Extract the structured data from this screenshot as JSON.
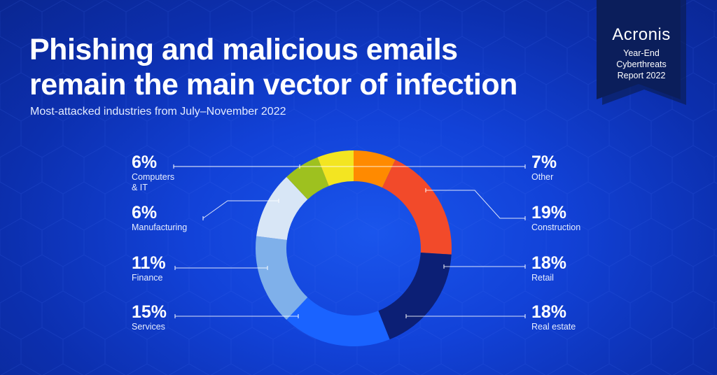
{
  "title_line1": "Phishing and malicious emails",
  "title_line2": "remain the main vector of infection",
  "subtitle": "Most-attacked industries from July–November 2022",
  "badge": {
    "brand": "Acronis",
    "line1": "Year-End",
    "line2": "Cyberthreats",
    "line3": "Report 2022"
  },
  "colors": {
    "background": "#1242d8",
    "badge": "#0b1e5b"
  },
  "chart_data": {
    "type": "pie",
    "subtype": "donut",
    "slices": [
      {
        "label": "Other",
        "value": 7,
        "color": "#ff8a00",
        "pct_text": "7%"
      },
      {
        "label": "Construction",
        "value": 19,
        "color": "#f24a2a",
        "pct_text": "19%"
      },
      {
        "label": "Retail",
        "value": 18,
        "color": "#0c1f75",
        "pct_text": "18%"
      },
      {
        "label": "Real estate",
        "value": 18,
        "color": "#1a63ff",
        "pct_text": "18%"
      },
      {
        "label": "Services",
        "value": 15,
        "color": "#7fb0ea",
        "pct_text": "15%"
      },
      {
        "label": "Finance",
        "value": 11,
        "color": "#d8e6f6",
        "pct_text": "11%"
      },
      {
        "label": "Manufacturing",
        "value": 6,
        "color": "#9ec11f",
        "pct_text": "6%"
      },
      {
        "label": "Computers & IT",
        "label_line1": "Computers",
        "label_line2": "& IT",
        "value": 6,
        "color": "#f3e521",
        "pct_text": "6%"
      }
    ]
  }
}
